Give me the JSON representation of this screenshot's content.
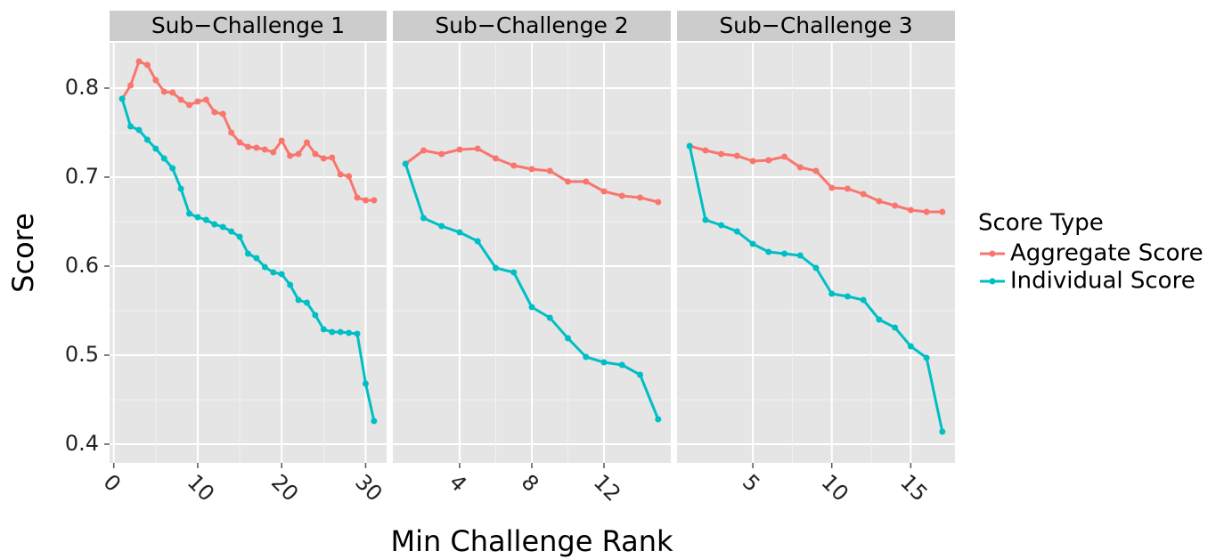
{
  "y_label": "Score",
  "x_label": "Min Challenge Rank",
  "legend_title": "Score Type",
  "chart_data": [
    {
      "type": "line",
      "title": "Sub−Challenge 1",
      "x": [
        1,
        2,
        3,
        4,
        5,
        6,
        7,
        8,
        9,
        10,
        11,
        12,
        13,
        14,
        15,
        16,
        17,
        18,
        19,
        20,
        21,
        22,
        23,
        24,
        25,
        26,
        27,
        28,
        29,
        30,
        31
      ],
      "series": [
        {
          "name": "Aggregate Score",
          "color": "#F8766D",
          "values": [
            0.788,
            0.803,
            0.83,
            0.826,
            0.809,
            0.796,
            0.795,
            0.787,
            0.781,
            0.785,
            0.787,
            0.773,
            0.771,
            0.75,
            0.739,
            0.734,
            0.733,
            0.731,
            0.728,
            0.741,
            0.724,
            0.726,
            0.739,
            0.726,
            0.721,
            0.722,
            0.703,
            0.701,
            0.677,
            0.674,
            0.674
          ]
        },
        {
          "name": "Individual Score",
          "color": "#00BFC4",
          "values": [
            0.788,
            0.757,
            0.753,
            0.742,
            0.732,
            0.721,
            0.71,
            0.687,
            0.659,
            0.655,
            0.652,
            0.647,
            0.644,
            0.639,
            0.633,
            0.614,
            0.609,
            0.599,
            0.593,
            0.591,
            0.579,
            0.562,
            0.559,
            0.545,
            0.529,
            0.526,
            0.526,
            0.525,
            0.524,
            0.468,
            0.426
          ]
        }
      ],
      "xlim": [
        -0.5,
        32.5
      ],
      "xticks": [
        0,
        10,
        20,
        30
      ],
      "ylim": [
        0.379,
        0.851
      ],
      "yticks": [
        0.4,
        0.5,
        0.6,
        0.7,
        0.8
      ],
      "grid": true
    },
    {
      "type": "line",
      "title": "Sub−Challenge 2",
      "x": [
        1,
        2,
        3,
        4,
        5,
        6,
        7,
        8,
        9,
        10,
        11,
        12,
        13,
        14,
        15
      ],
      "series": [
        {
          "name": "Aggregate Score",
          "color": "#F8766D",
          "values": [
            0.715,
            0.73,
            0.726,
            0.731,
            0.732,
            0.721,
            0.713,
            0.709,
            0.707,
            0.695,
            0.695,
            0.684,
            0.679,
            0.677,
            0.672
          ]
        },
        {
          "name": "Individual Score",
          "color": "#00BFC4",
          "values": [
            0.715,
            0.654,
            0.645,
            0.638,
            0.628,
            0.598,
            0.593,
            0.554,
            0.542,
            0.519,
            0.498,
            0.492,
            0.489,
            0.478,
            0.428
          ]
        }
      ],
      "xlim": [
        0.3,
        15.7
      ],
      "xticks": [
        4,
        8,
        12
      ],
      "ylim": [
        0.379,
        0.851
      ],
      "grid": true
    },
    {
      "type": "line",
      "title": "Sub−Challenge 3",
      "x": [
        1,
        2,
        3,
        4,
        5,
        6,
        7,
        8,
        9,
        10,
        11,
        12,
        13,
        14,
        15,
        16,
        17
      ],
      "series": [
        {
          "name": "Aggregate Score",
          "color": "#F8766D",
          "values": [
            0.735,
            0.73,
            0.726,
            0.724,
            0.718,
            0.719,
            0.723,
            0.711,
            0.707,
            0.688,
            0.687,
            0.681,
            0.673,
            0.668,
            0.663,
            0.661,
            0.661
          ]
        },
        {
          "name": "Individual Score",
          "color": "#00BFC4",
          "values": [
            0.735,
            0.652,
            0.646,
            0.639,
            0.625,
            0.616,
            0.614,
            0.612,
            0.598,
            0.569,
            0.566,
            0.562,
            0.54,
            0.531,
            0.51,
            0.497,
            0.414
          ]
        }
      ],
      "xlim": [
        0.2,
        17.8
      ],
      "xticks": [
        5,
        10,
        15
      ],
      "ylim": [
        0.379,
        0.851
      ],
      "grid": true
    }
  ]
}
